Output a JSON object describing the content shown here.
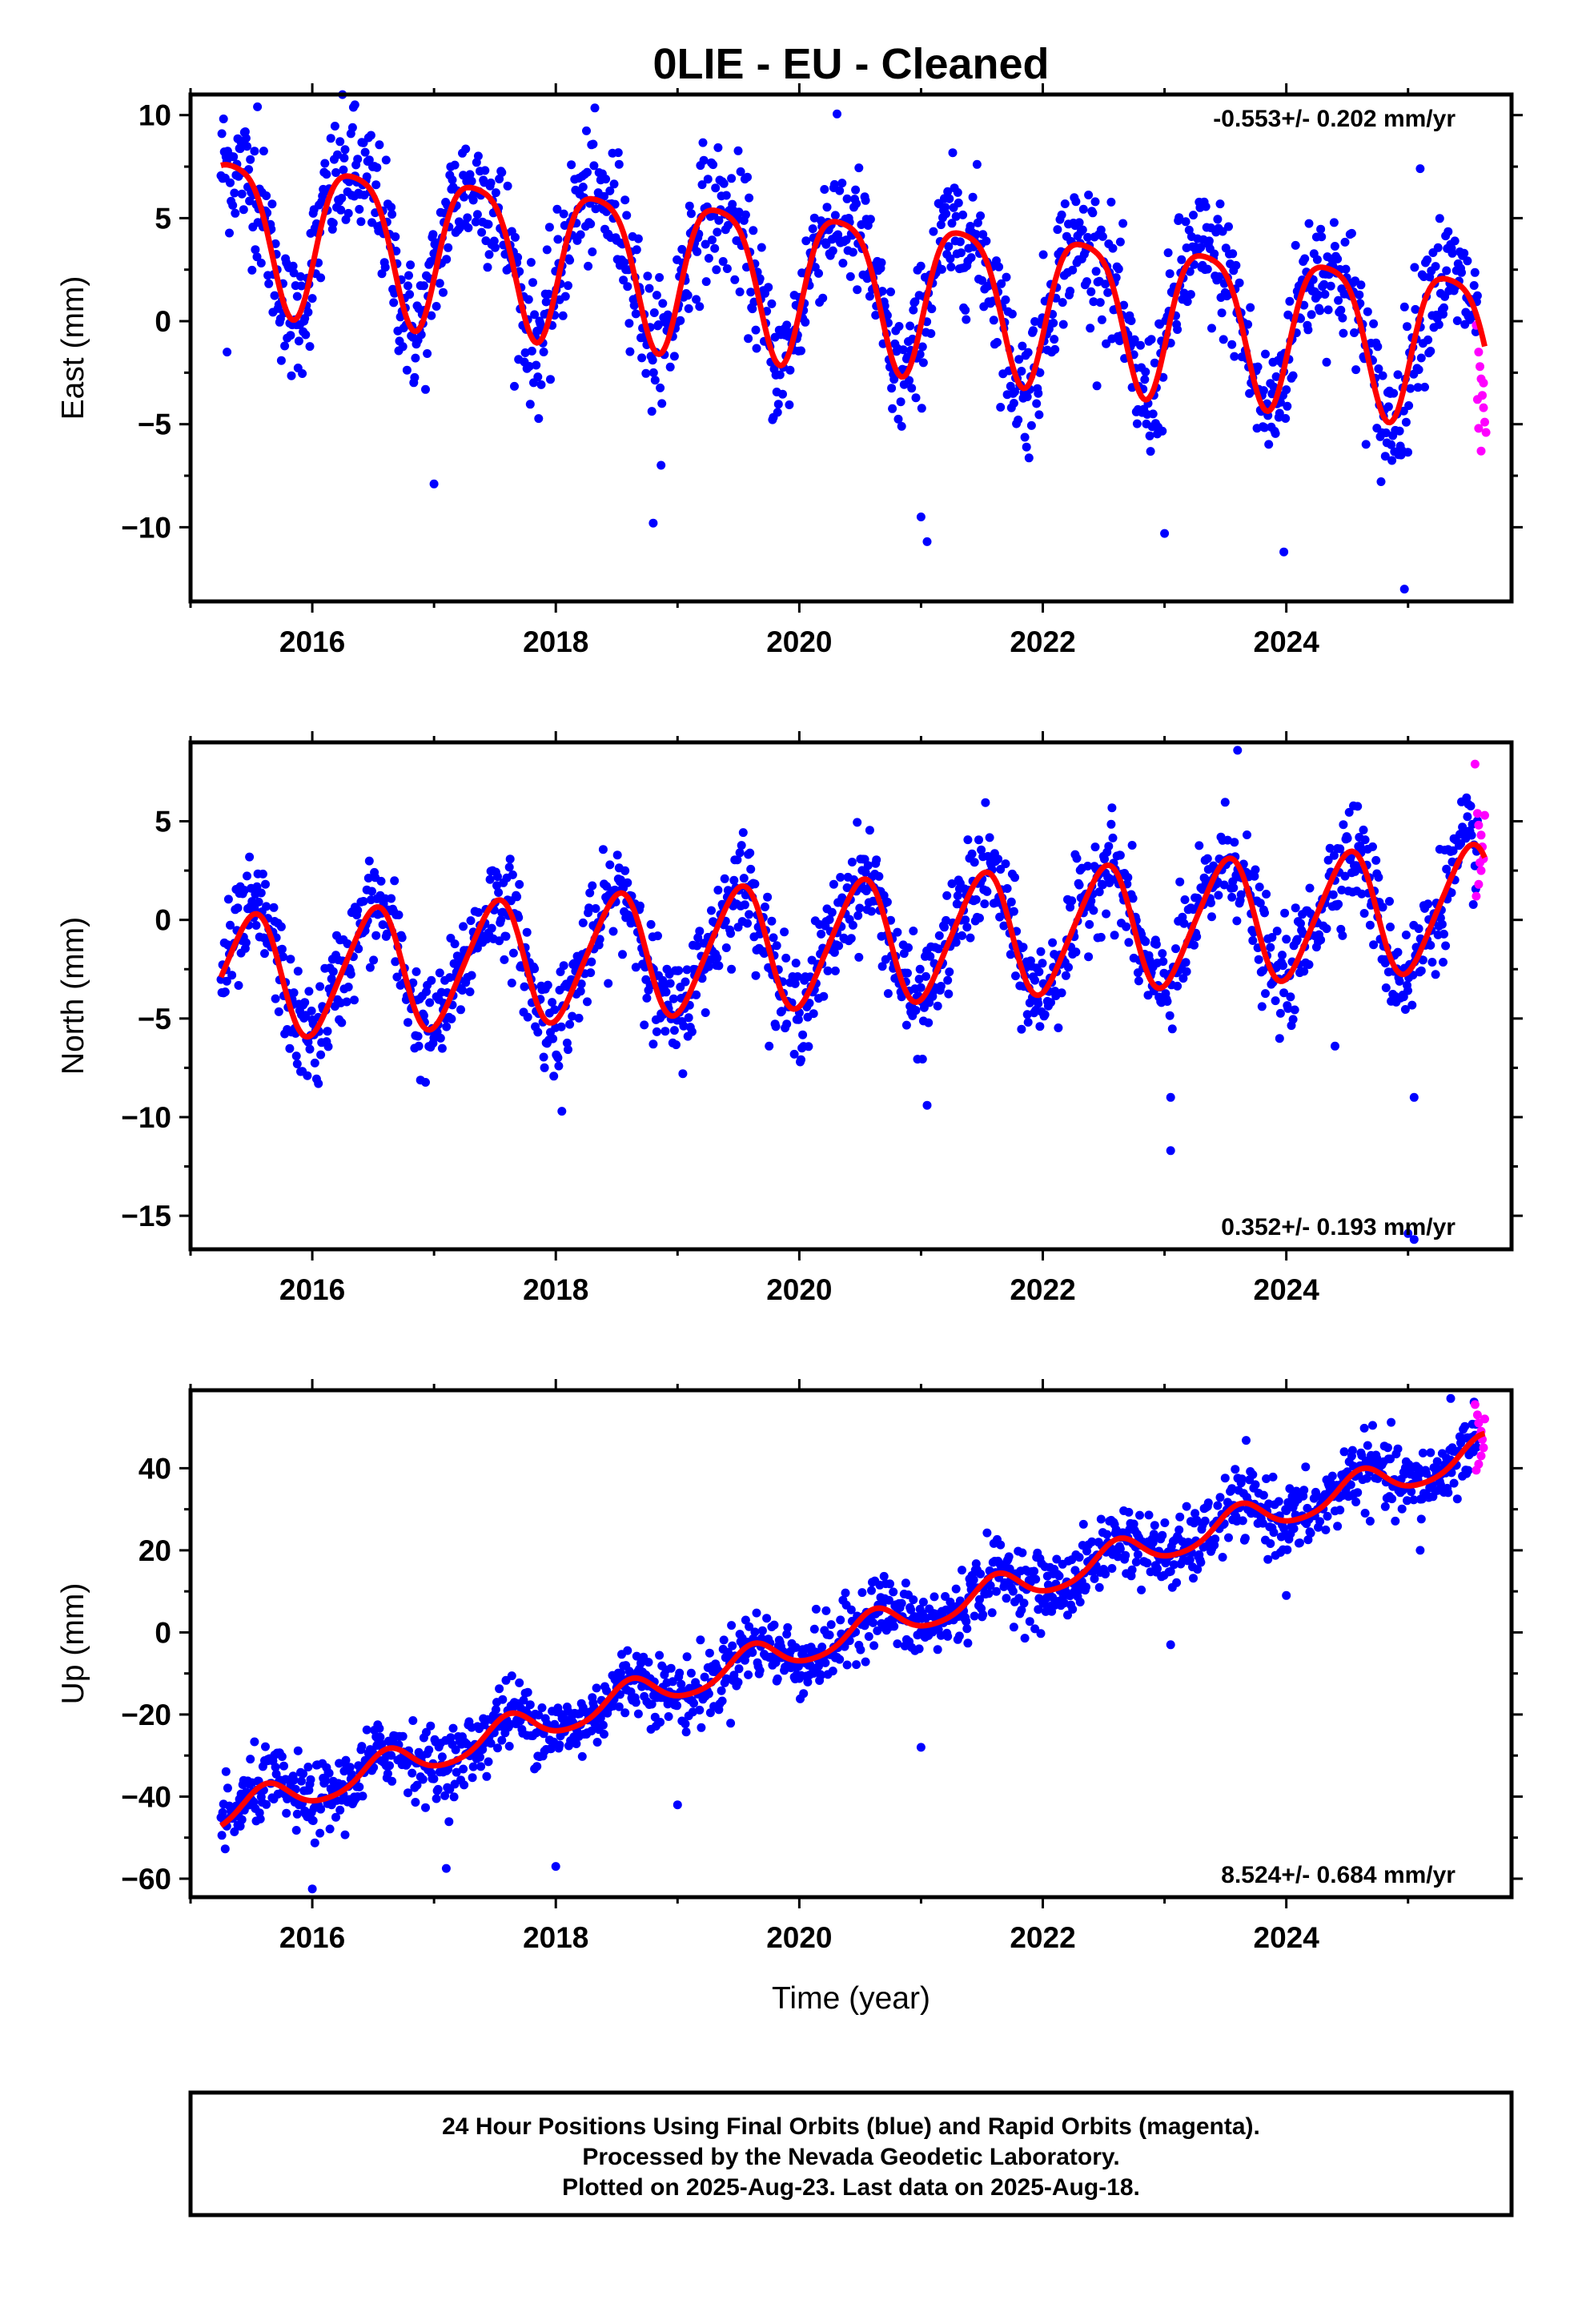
{
  "title": "0LIE  - EU - Cleaned",
  "colors": {
    "final": "#0000ff",
    "rapid": "#ff00ff",
    "model": "#ff0000",
    "frame": "#000000"
  },
  "chart_data": [
    {
      "type": "scatter",
      "name": "east",
      "ylabel": "East (mm)",
      "xlabel": "",
      "xlim": [
        2015.0,
        2025.85
      ],
      "ylim": [
        -13.6,
        11.0
      ],
      "xticks": [
        2016,
        2018,
        2020,
        2022,
        2024
      ],
      "xtick_labels": [
        "2016",
        "2018",
        "2020",
        "2022",
        "2024"
      ],
      "yticks": [
        10,
        5,
        0,
        -5,
        -10
      ],
      "ytick_labels": [
        "10",
        "5",
        "0",
        "−5",
        "−10"
      ],
      "rate_text": "-0.553+/- 0.202 mm/yr",
      "rate_position": "top-right",
      "model": {
        "start": 2015.25,
        "end": 2025.63,
        "offset": 2.1,
        "trend": -0.553,
        "annual_amp": 3.6,
        "annual_phase": -0.56,
        "semi_amp": 0.75,
        "semi_phase": 0.3
      },
      "scatter_sigma": 1.6,
      "outliers": [
        [
          2015.3,
          -1.5
        ],
        [
          2016.35,
          10.5
        ],
        [
          2015.55,
          10.4
        ],
        [
          2017.0,
          -7.9
        ],
        [
          2018.8,
          -9.8
        ],
        [
          2021.05,
          -10.7
        ],
        [
          2021.0,
          -9.5
        ],
        [
          2023.0,
          -10.3
        ],
        [
          2023.98,
          -11.2
        ],
        [
          2025.1,
          7.4
        ],
        [
          2024.97,
          -13.0
        ]
      ],
      "rapid_points": [
        [
          2025.56,
          -0.2
        ],
        [
          2025.58,
          -1.5
        ],
        [
          2025.6,
          -2.8
        ],
        [
          2025.61,
          -3.6
        ],
        [
          2025.62,
          -4.2
        ],
        [
          2025.63,
          -4.9
        ],
        [
          2025.64,
          -5.4
        ],
        [
          2025.6,
          -6.3
        ],
        [
          2025.57,
          -3.8
        ],
        [
          2025.59,
          -2.2
        ],
        [
          2025.62,
          -3.0
        ],
        [
          2025.58,
          -5.2
        ]
      ]
    },
    {
      "type": "scatter",
      "name": "north",
      "ylabel": "North (mm)",
      "xlabel": "",
      "xlim": [
        2015.0,
        2025.85
      ],
      "ylim": [
        -16.7,
        9.0
      ],
      "xticks": [
        2016,
        2018,
        2020,
        2022,
        2024
      ],
      "xtick_labels": [
        "2016",
        "2018",
        "2020",
        "2022",
        "2024"
      ],
      "yticks": [
        5,
        0,
        -5,
        -10,
        -15
      ],
      "ytick_labels": [
        "5",
        "0",
        "−5",
        "−10",
        "−15"
      ],
      "rate_text": "0.352+/- 0.193 mm/yr",
      "rate_position": "bottom-right",
      "model": {
        "start": 2015.25,
        "end": 2025.63,
        "offset": -1.3,
        "trend": 0.352,
        "annual_amp": 3.1,
        "annual_phase": -1.55,
        "semi_amp": 0.4,
        "semi_phase": 0.0
      },
      "scatter_sigma": 1.3,
      "outliers": [
        [
          2016.05,
          -8.3
        ],
        [
          2018.05,
          -9.7
        ],
        [
          2021.05,
          -9.4
        ],
        [
          2023.05,
          -11.7
        ],
        [
          2023.05,
          -9.0
        ],
        [
          2025.05,
          -16.2
        ],
        [
          2025.0,
          -15.9
        ],
        [
          2025.05,
          -9.0
        ],
        [
          2023.6,
          8.6
        ],
        [
          2024.4,
          -6.4
        ],
        [
          2018.8,
          -6.3
        ]
      ],
      "rapid_points": [
        [
          2025.55,
          7.9
        ],
        [
          2025.57,
          5.4
        ],
        [
          2025.58,
          4.8
        ],
        [
          2025.6,
          4.3
        ],
        [
          2025.61,
          3.7
        ],
        [
          2025.62,
          3.1
        ],
        [
          2025.6,
          2.5
        ],
        [
          2025.58,
          1.8
        ],
        [
          2025.56,
          1.2
        ],
        [
          2025.63,
          5.3
        ],
        [
          2025.59,
          2.9
        ]
      ]
    },
    {
      "type": "scatter",
      "name": "up",
      "ylabel": "Up (mm)",
      "xlabel": "Time (year)",
      "xlim": [
        2015.0,
        2025.85
      ],
      "ylim": [
        -64.5,
        59.0
      ],
      "xticks": [
        2016,
        2018,
        2020,
        2022,
        2024
      ],
      "xtick_labels": [
        "2016",
        "2018",
        "2020",
        "2022",
        "2024"
      ],
      "yticks": [
        40,
        20,
        0,
        -20,
        -40,
        -60
      ],
      "ytick_labels": [
        "40",
        "20",
        "0",
        "−20",
        "−40",
        "−60"
      ],
      "rate_text": "8.524+/- 0.684 mm/yr",
      "rate_position": "bottom-right",
      "model": {
        "start": 2015.25,
        "end": 2025.63,
        "offset": -4.0,
        "trend": 8.524,
        "annual_amp": 3.9,
        "annual_phase": -2.3,
        "semi_amp": 0.6,
        "semi_phase": 0.0
      },
      "scatter_sigma": 4.3,
      "outliers": [
        [
          2016.0,
          -62.5
        ],
        [
          2017.1,
          -57.5
        ],
        [
          2018.0,
          -57.0
        ],
        [
          2019.0,
          -42.0
        ],
        [
          2021.0,
          -28.0
        ],
        [
          2023.05,
          -3.0
        ],
        [
          2024.0,
          9.0
        ],
        [
          2025.35,
          57.0
        ],
        [
          2025.1,
          20.0
        ]
      ],
      "rapid_points": [
        [
          2025.55,
          55.5
        ],
        [
          2025.57,
          53.0
        ],
        [
          2025.58,
          51.0
        ],
        [
          2025.6,
          49.0
        ],
        [
          2025.61,
          47.0
        ],
        [
          2025.62,
          45.0
        ],
        [
          2025.6,
          43.0
        ],
        [
          2025.58,
          41.0
        ],
        [
          2025.56,
          39.5
        ],
        [
          2025.63,
          52.0
        ],
        [
          2025.59,
          48.0
        ]
      ]
    }
  ],
  "footer": {
    "line1": "24 Hour Positions Using Final Orbits (blue) and Rapid Orbits (magenta).",
    "line2": "Processed by the Nevada Geodetic Laboratory.",
    "line3": "Plotted on 2025-Aug-23. Last data on 2025-Aug-18."
  }
}
